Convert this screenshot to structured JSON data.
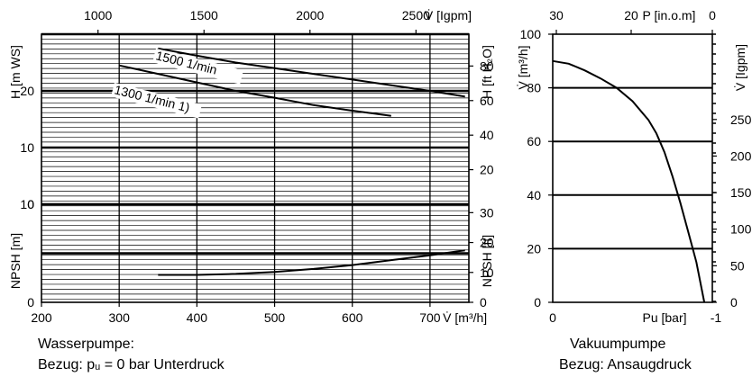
{
  "chart_data": [
    {
      "id": "water-pump",
      "type": "line",
      "x_bottom": {
        "label": "V̇ [m³/h]",
        "range": [
          200,
          750
        ],
        "ticks": [
          200,
          300,
          400,
          500,
          600,
          700
        ]
      },
      "x_top": {
        "label": "V̇ [Igpm]",
        "ticks": [
          1000,
          1500,
          2000,
          2500
        ]
      },
      "head_panel": {
        "y_left": {
          "label": "H [m WS]",
          "range": [
            0,
            30
          ],
          "ticks": [
            0,
            10,
            20
          ]
        },
        "y_right": {
          "label": "H [ft H₂O]",
          "ticks": [
            20,
            40,
            60,
            80
          ]
        },
        "series": [
          {
            "name": "1500 1/min",
            "x": [
              350,
              400,
              450,
              500,
              550,
              600,
              650,
              700,
              745
            ],
            "y": [
              27.5,
              26.2,
              25,
              24,
              23,
              22,
              21,
              20,
              19
            ]
          },
          {
            "name": "1300 1/min 1)",
            "x": [
              300,
              350,
              400,
              450,
              500,
              550,
              600,
              650
            ],
            "y": [
              24.5,
              23,
              21.5,
              20,
              18.8,
              17.5,
              16.5,
              15.6
            ]
          }
        ]
      },
      "npsh_panel": {
        "y_left": {
          "label": "NPSH [m]",
          "range": [
            0,
            10
          ],
          "ticks": [
            0,
            10
          ]
        },
        "y_right": {
          "label": "NPSH [ft]",
          "ticks": [
            0,
            10,
            20,
            30
          ]
        },
        "series": [
          {
            "x": [
              350,
              400,
              450,
              500,
              550,
              600,
              650,
              700,
              745
            ],
            "y": [
              2.8,
              2.8,
              2.9,
              3.1,
              3.4,
              3.8,
              4.3,
              4.8,
              5.3
            ]
          }
        ]
      }
    },
    {
      "id": "vacuum-pump",
      "type": "line",
      "x_bottom": {
        "label": "Pu [bar]",
        "range": [
          0,
          -1
        ],
        "ticks": [
          "0",
          "-1"
        ]
      },
      "x_top": {
        "label": "P [in.o.m]",
        "ticks": [
          30,
          20,
          0
        ]
      },
      "y_left": {
        "label": "V̇ [m³/h]",
        "range": [
          0,
          100
        ],
        "ticks": [
          0,
          20,
          40,
          60,
          80,
          100
        ]
      },
      "y_right": {
        "label": "V̇ [Igpm]",
        "ticks": [
          0,
          50,
          100,
          150,
          200,
          250
        ]
      },
      "series": [
        {
          "x": [
            0,
            -0.1,
            -0.2,
            -0.3,
            -0.4,
            -0.5,
            -0.6,
            -0.65,
            -0.7,
            -0.75,
            -0.8,
            -0.85,
            -0.9,
            -0.95
          ],
          "y": [
            90,
            89,
            86.5,
            83.5,
            80,
            75,
            68,
            63,
            56,
            47,
            37,
            26,
            15,
            0
          ]
        }
      ]
    }
  ],
  "captions": {
    "water_title": "Wasserpumpe:",
    "water_ref": "Bezug: pᵤ = 0 bar Unterdruck",
    "vacuum_title": "Vakuumpumpe",
    "vacuum_ref": "Bezug: Ansaugdruck"
  }
}
